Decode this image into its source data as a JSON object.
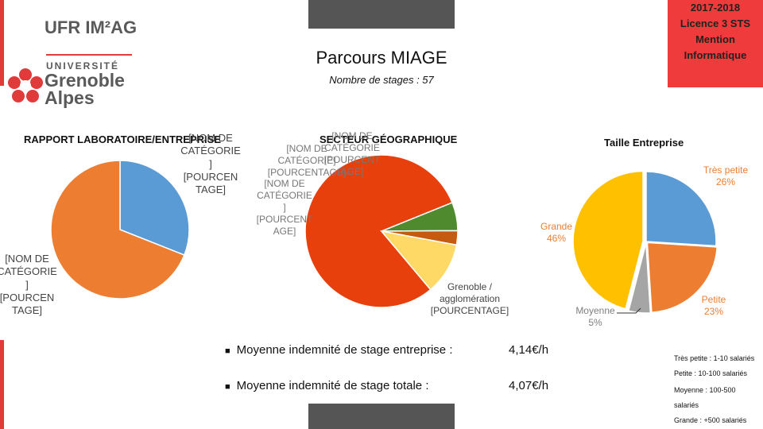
{
  "header": {
    "logo": {
      "ufr": "UFR IM²AG",
      "universite": "UNIVERSITÉ",
      "grenoble": "Grenoble",
      "alpes": "Alpes"
    },
    "title": "Parcours MIAGE",
    "subtitle": "Nombre de stages : 57",
    "info_lines": [
      "2017-2018",
      "Licence 3 STS",
      "Mention",
      "Informatique"
    ]
  },
  "chart_data": [
    {
      "type": "pie",
      "title": "RAPPORT LABORATOIRE/ENTREPRISE",
      "categories": [
        "[NOM DE CATÉGORIE] [POURCENTAGE]",
        "[NOM DE CATÉGORIE] [POURCENTAGE]"
      ],
      "values": [
        31,
        69
      ],
      "colors": [
        "#5b9bd5",
        "#ed7d31"
      ],
      "label_lines": [
        [
          "[NOM DE",
          "CATÉGORIE",
          "]",
          "[POURCEN",
          "TAGE]"
        ],
        [
          "[NOM DE",
          "CATÉGORIE",
          "]",
          "[POURCEN",
          "TAGE]"
        ]
      ]
    },
    {
      "type": "pie",
      "title": "SECTEUR GÉOGRAPHIQUE",
      "categories": [
        "Grenoble / agglomération",
        "[NOM DE CATÉGORIE]",
        "[NOM DE CATÉGORIE]",
        "[NOM DE CATÉGORIE]"
      ],
      "values": [
        80,
        6,
        3,
        11
      ],
      "colors": [
        "#e8400c",
        "#4f8a2e",
        "#c55a11",
        "#ffd966"
      ],
      "label_lines": [
        [
          "Grenoble /",
          "agglomération",
          "[POURCENTAGE]"
        ],
        [
          "[NOM DE",
          "CATÉGORIE",
          "]",
          "[POURCENT",
          "AGE]"
        ],
        [
          "[NOM DE",
          "CATÉGORIE]",
          "[POURCENTAGE]"
        ],
        [
          "[NOM DE",
          "CATÉGORIE",
          "[POURCENT",
          "AGE]"
        ]
      ]
    },
    {
      "type": "pie",
      "title": "Taille Entreprise",
      "categories": [
        "Très petite",
        "Petite",
        "Moyenne",
        "Grande"
      ],
      "values": [
        26,
        23,
        5,
        46
      ],
      "colors": [
        "#5b9bd5",
        "#ed7d31",
        "#a5a5a5",
        "#ffc000"
      ],
      "label_lines": [
        [
          "Très petite",
          "26%"
        ],
        [
          "Petite",
          "23%"
        ],
        [
          "Moyenne",
          "5%"
        ],
        [
          "Grande",
          "46%"
        ]
      ]
    }
  ],
  "stats": [
    {
      "label": "Moyenne indemnité de stage entreprise :",
      "value": "4,14€/h"
    },
    {
      "label": "Moyenne indemnité de stage totale :",
      "value": "4,07€/h"
    }
  ],
  "size_legend": [
    "Très petite : 1-10 salariés",
    "Petite : 10-100 salariés",
    "Moyenne : 100-500",
    "salariés",
    "Grande : +500 salariés"
  ]
}
